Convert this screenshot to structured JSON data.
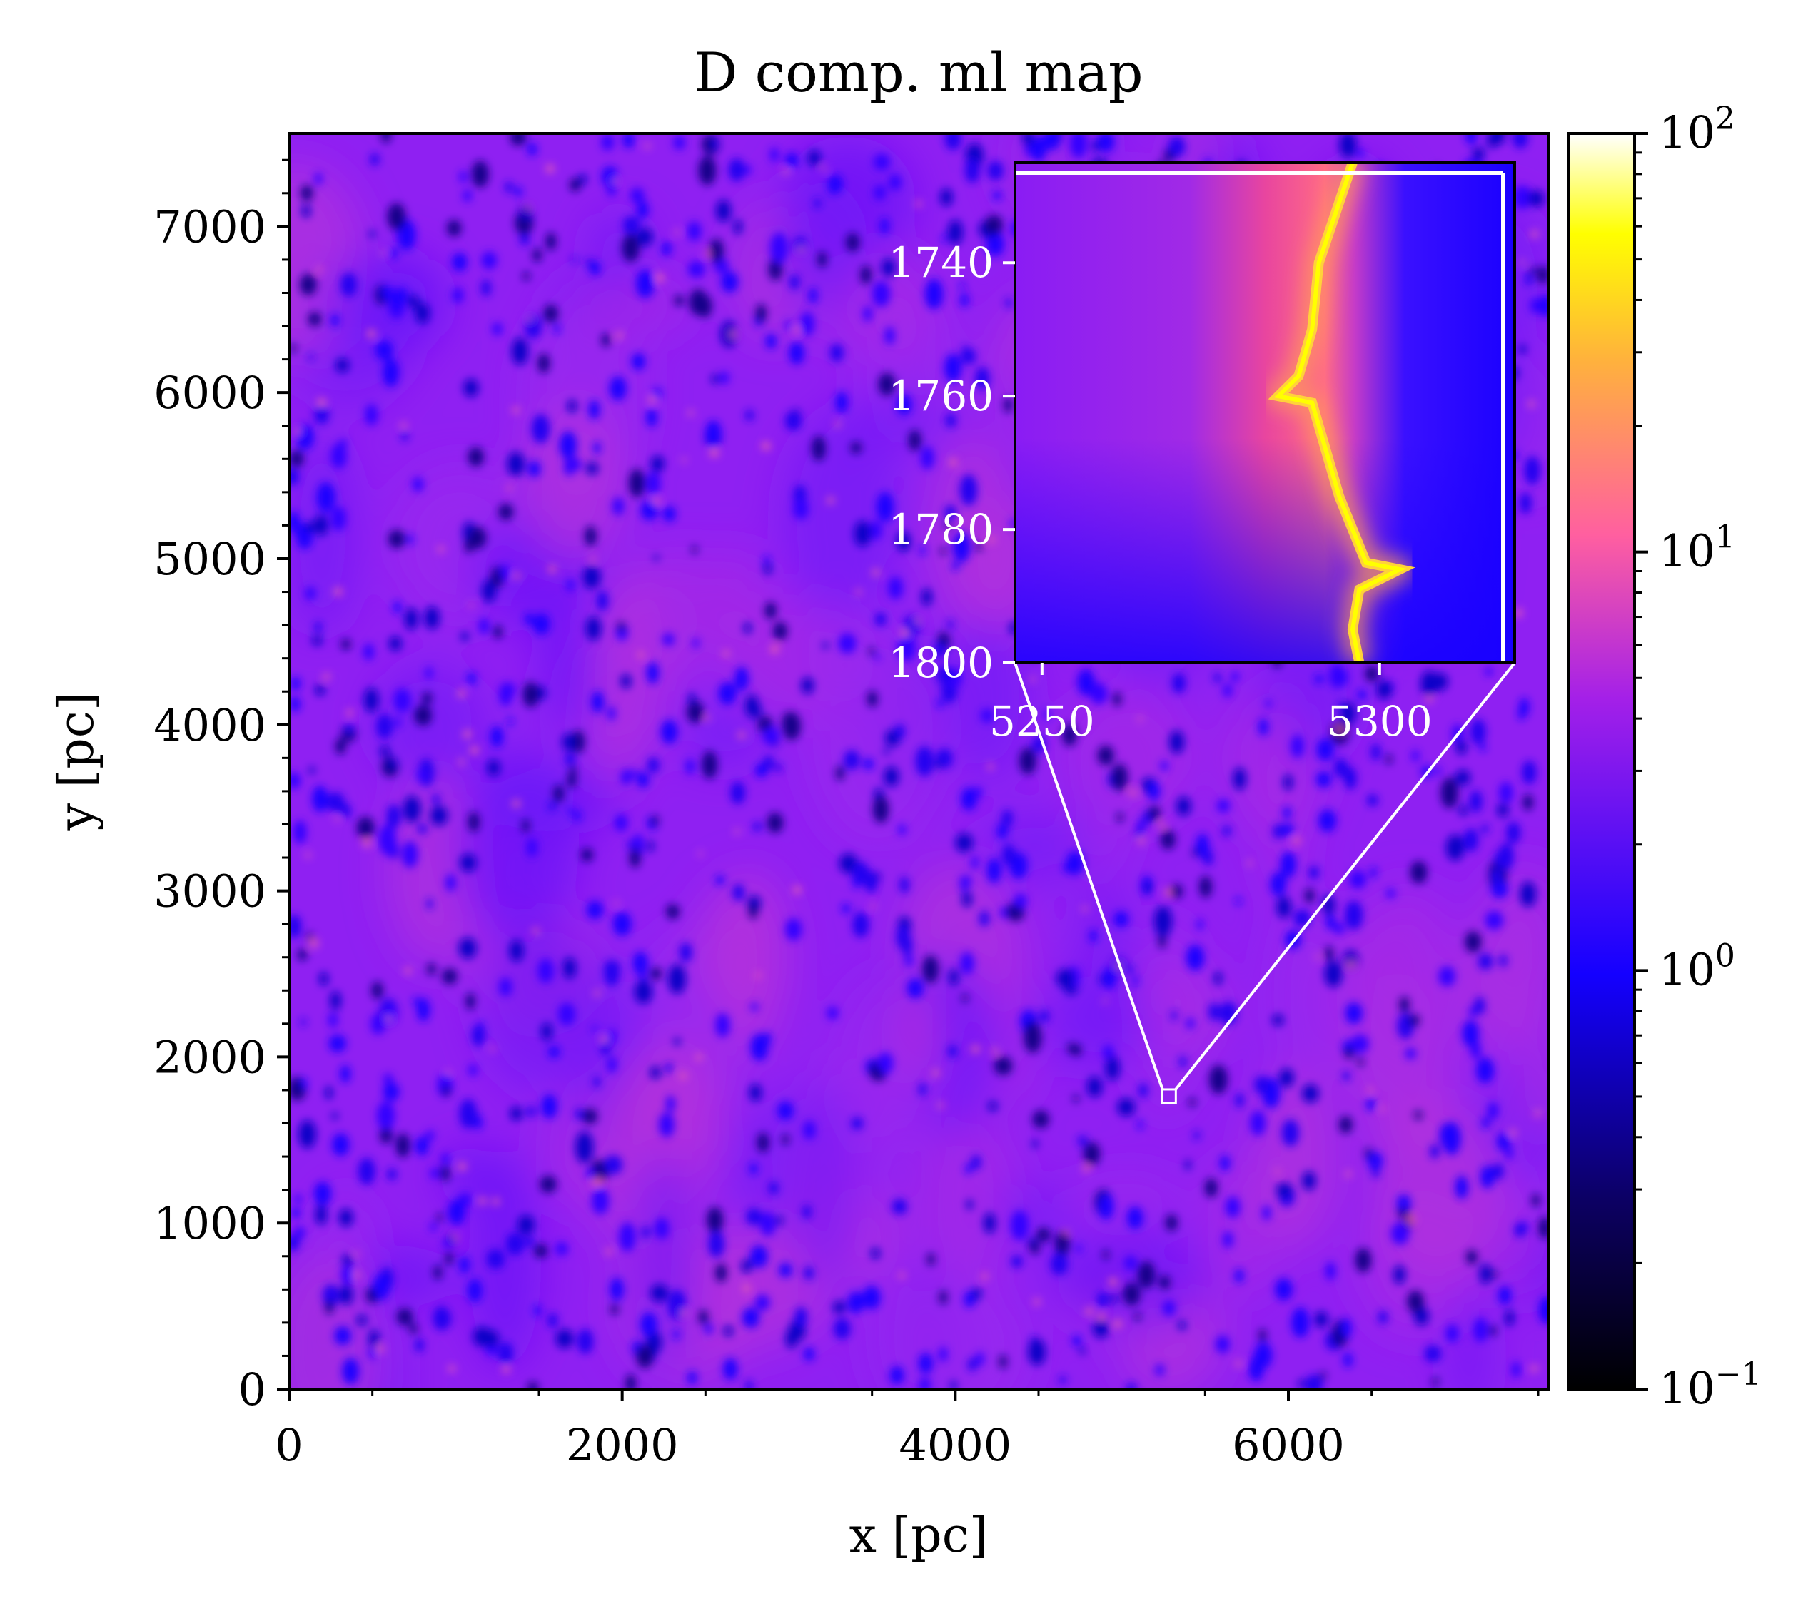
{
  "chart_data": {
    "type": "heatmap",
    "title": "D comp. ml map",
    "xlabel": "x [pc]",
    "ylabel": "y [pc]",
    "xlim": [
      0,
      7560
    ],
    "ylim": [
      0,
      7560
    ],
    "xticks": [
      0,
      2000,
      4000,
      6000
    ],
    "yticks": [
      0,
      1000,
      2000,
      3000,
      4000,
      5000,
      6000,
      7000
    ],
    "colormap": "gnuplot2",
    "color_scale": "log",
    "colorbar": {
      "range": [
        0.1,
        100
      ],
      "ticks": [
        {
          "value": 0.1,
          "base": "10",
          "exp": "−1"
        },
        {
          "value": 1,
          "base": "10",
          "exp": "0"
        },
        {
          "value": 10,
          "base": "10",
          "exp": "1"
        },
        {
          "value": 100,
          "base": "10",
          "exp": "2"
        }
      ]
    },
    "background_level": "~1 (purple/blue field with many dark-blue spots)",
    "inset": {
      "xlim": [
        5246,
        5320
      ],
      "ylim": [
        1800,
        1725
      ],
      "xticks": [
        5250,
        5300
      ],
      "yticks": [
        1740,
        1760,
        1780,
        1800
      ],
      "zoom_box": {
        "x": [
          5246,
          5320
        ],
        "y": [
          1725,
          1800
        ]
      },
      "ridge_path": [
        [
          5296,
          1725
        ],
        [
          5295,
          1728
        ],
        [
          5291,
          1740
        ],
        [
          5290,
          1750
        ],
        [
          5288,
          1757
        ],
        [
          5285,
          1760
        ],
        [
          5290,
          1761
        ],
        [
          5292,
          1768
        ],
        [
          5294,
          1775
        ],
        [
          5296,
          1780
        ],
        [
          5298,
          1785
        ],
        [
          5303,
          1786
        ],
        [
          5297,
          1789
        ],
        [
          5296,
          1795
        ],
        [
          5297,
          1800
        ]
      ]
    }
  }
}
